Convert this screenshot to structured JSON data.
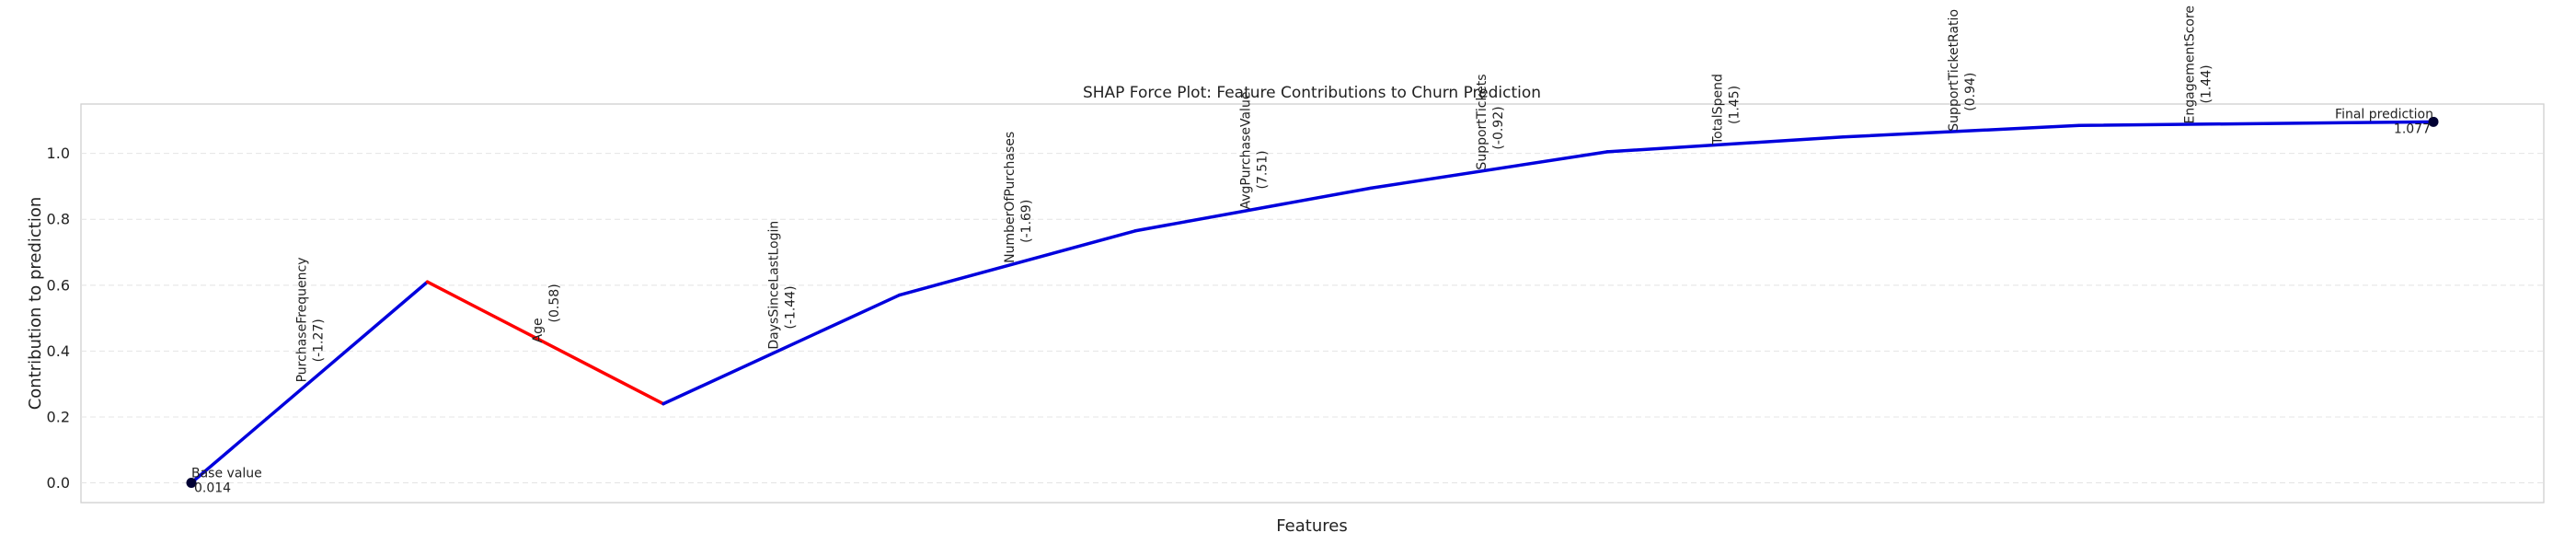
{
  "chart_data": {
    "type": "line",
    "title": "SHAP Force Plot: Feature Contributions to Churn Prediction",
    "xlabel": "Features",
    "ylabel": "Contribution to prediction",
    "ylim": [
      -0.06,
      1.15
    ],
    "yticks": [
      "0.0",
      "0.2",
      "0.4",
      "0.6",
      "0.8",
      "1.0"
    ],
    "grid": true,
    "x_positions": [
      0,
      1,
      2,
      3,
      4,
      5,
      6,
      7,
      8,
      9,
      10,
      11,
      12,
      13,
      14,
      15,
      16,
      17,
      18,
      19
    ],
    "points": [
      0.0,
      0.61,
      0.24,
      0.57,
      0.765,
      0.895,
      1.005,
      1.05,
      1.085,
      1.096
    ],
    "segment_colors": [
      "#0000dd",
      "#ff0000",
      "#0000dd",
      "#0000dd",
      "#0000dd",
      "#0000dd",
      "#0000dd",
      "#0000dd",
      "#0000dd"
    ],
    "features": [
      {
        "name": "PurchaseFrequency",
        "value": "(-1.27)",
        "x": 1,
        "y": 0.305
      },
      {
        "name": "Age",
        "value": "(0.58)",
        "x": 3,
        "y": 0.425
      },
      {
        "name": "DaysSinceLastLogin",
        "value": "(-1.44)",
        "x": 5,
        "y": 0.405
      },
      {
        "name": "NumberOfPurchases",
        "value": "(-1.69)",
        "x": 7,
        "y": 0.667
      },
      {
        "name": "AvgPurchaseValue",
        "value": "(7.51)",
        "x": 9,
        "y": 0.83
      },
      {
        "name": "SupportTickets",
        "value": "(-0.92)",
        "x": 11,
        "y": 0.95
      },
      {
        "name": "TotalSpend",
        "value": "(1.45)",
        "x": 13,
        "y": 1.027
      },
      {
        "name": "SupportTicketRatio",
        "value": "(0.94)",
        "x": 15,
        "y": 1.067
      },
      {
        "name": "EngagementScore",
        "value": "(1.44)",
        "x": 17,
        "y": 1.09
      }
    ],
    "base": {
      "label": "Base value",
      "value": "0.014",
      "x": 0,
      "y": 0.0
    },
    "final": {
      "label": "Final prediction",
      "value": "1.077",
      "x": 19,
      "y": 1.096
    },
    "line_color_positive": "#0000dd",
    "line_color_negative": "#ff0000",
    "marker_color": "#000033"
  }
}
